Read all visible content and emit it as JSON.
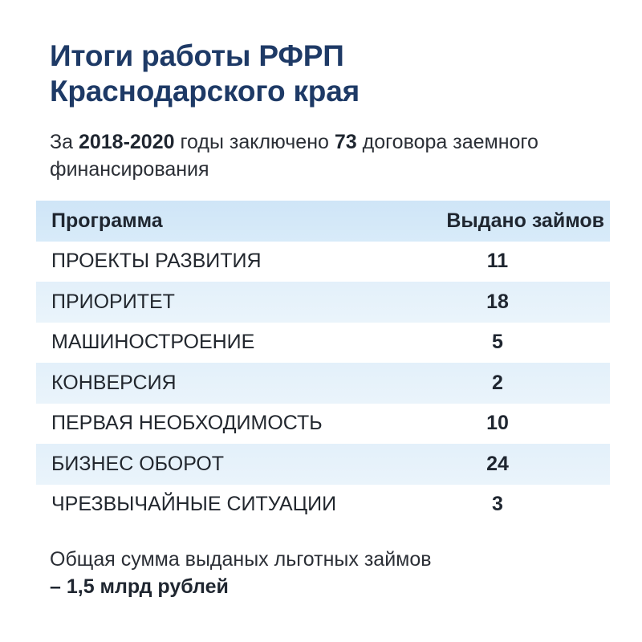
{
  "title": {
    "line1": "Итоги работы РФРП",
    "line2": "Краснодарского края"
  },
  "subtitle": {
    "prefix": "За ",
    "years": "2018-2020",
    "middle": " годы заключено ",
    "count": "73",
    "suffix": " договора заемного финансирования"
  },
  "table": {
    "headers": {
      "program": "Программа",
      "loans": "Выдано займов"
    },
    "rows": [
      {
        "program": "ПРОЕКТЫ РАЗВИТИЯ",
        "loans": "11"
      },
      {
        "program": "ПРИОРИТЕТ",
        "loans": "18"
      },
      {
        "program": "МАШИНОСТРОЕНИЕ",
        "loans": "5"
      },
      {
        "program": "КОНВЕРСИЯ",
        "loans": "2"
      },
      {
        "program": "ПЕРВАЯ НЕОБХОДИМОСТЬ",
        "loans": "10"
      },
      {
        "program": "БИЗНЕС ОБОРОТ",
        "loans": "24"
      },
      {
        "program": "ЧРЕЗВЫЧАЙНЫЕ СИТУАЦИИ",
        "loans": "3"
      }
    ]
  },
  "footer": {
    "text": "Общая сумма  выданых льготных займов",
    "amount": "– 1,5 млрд рублей"
  }
}
